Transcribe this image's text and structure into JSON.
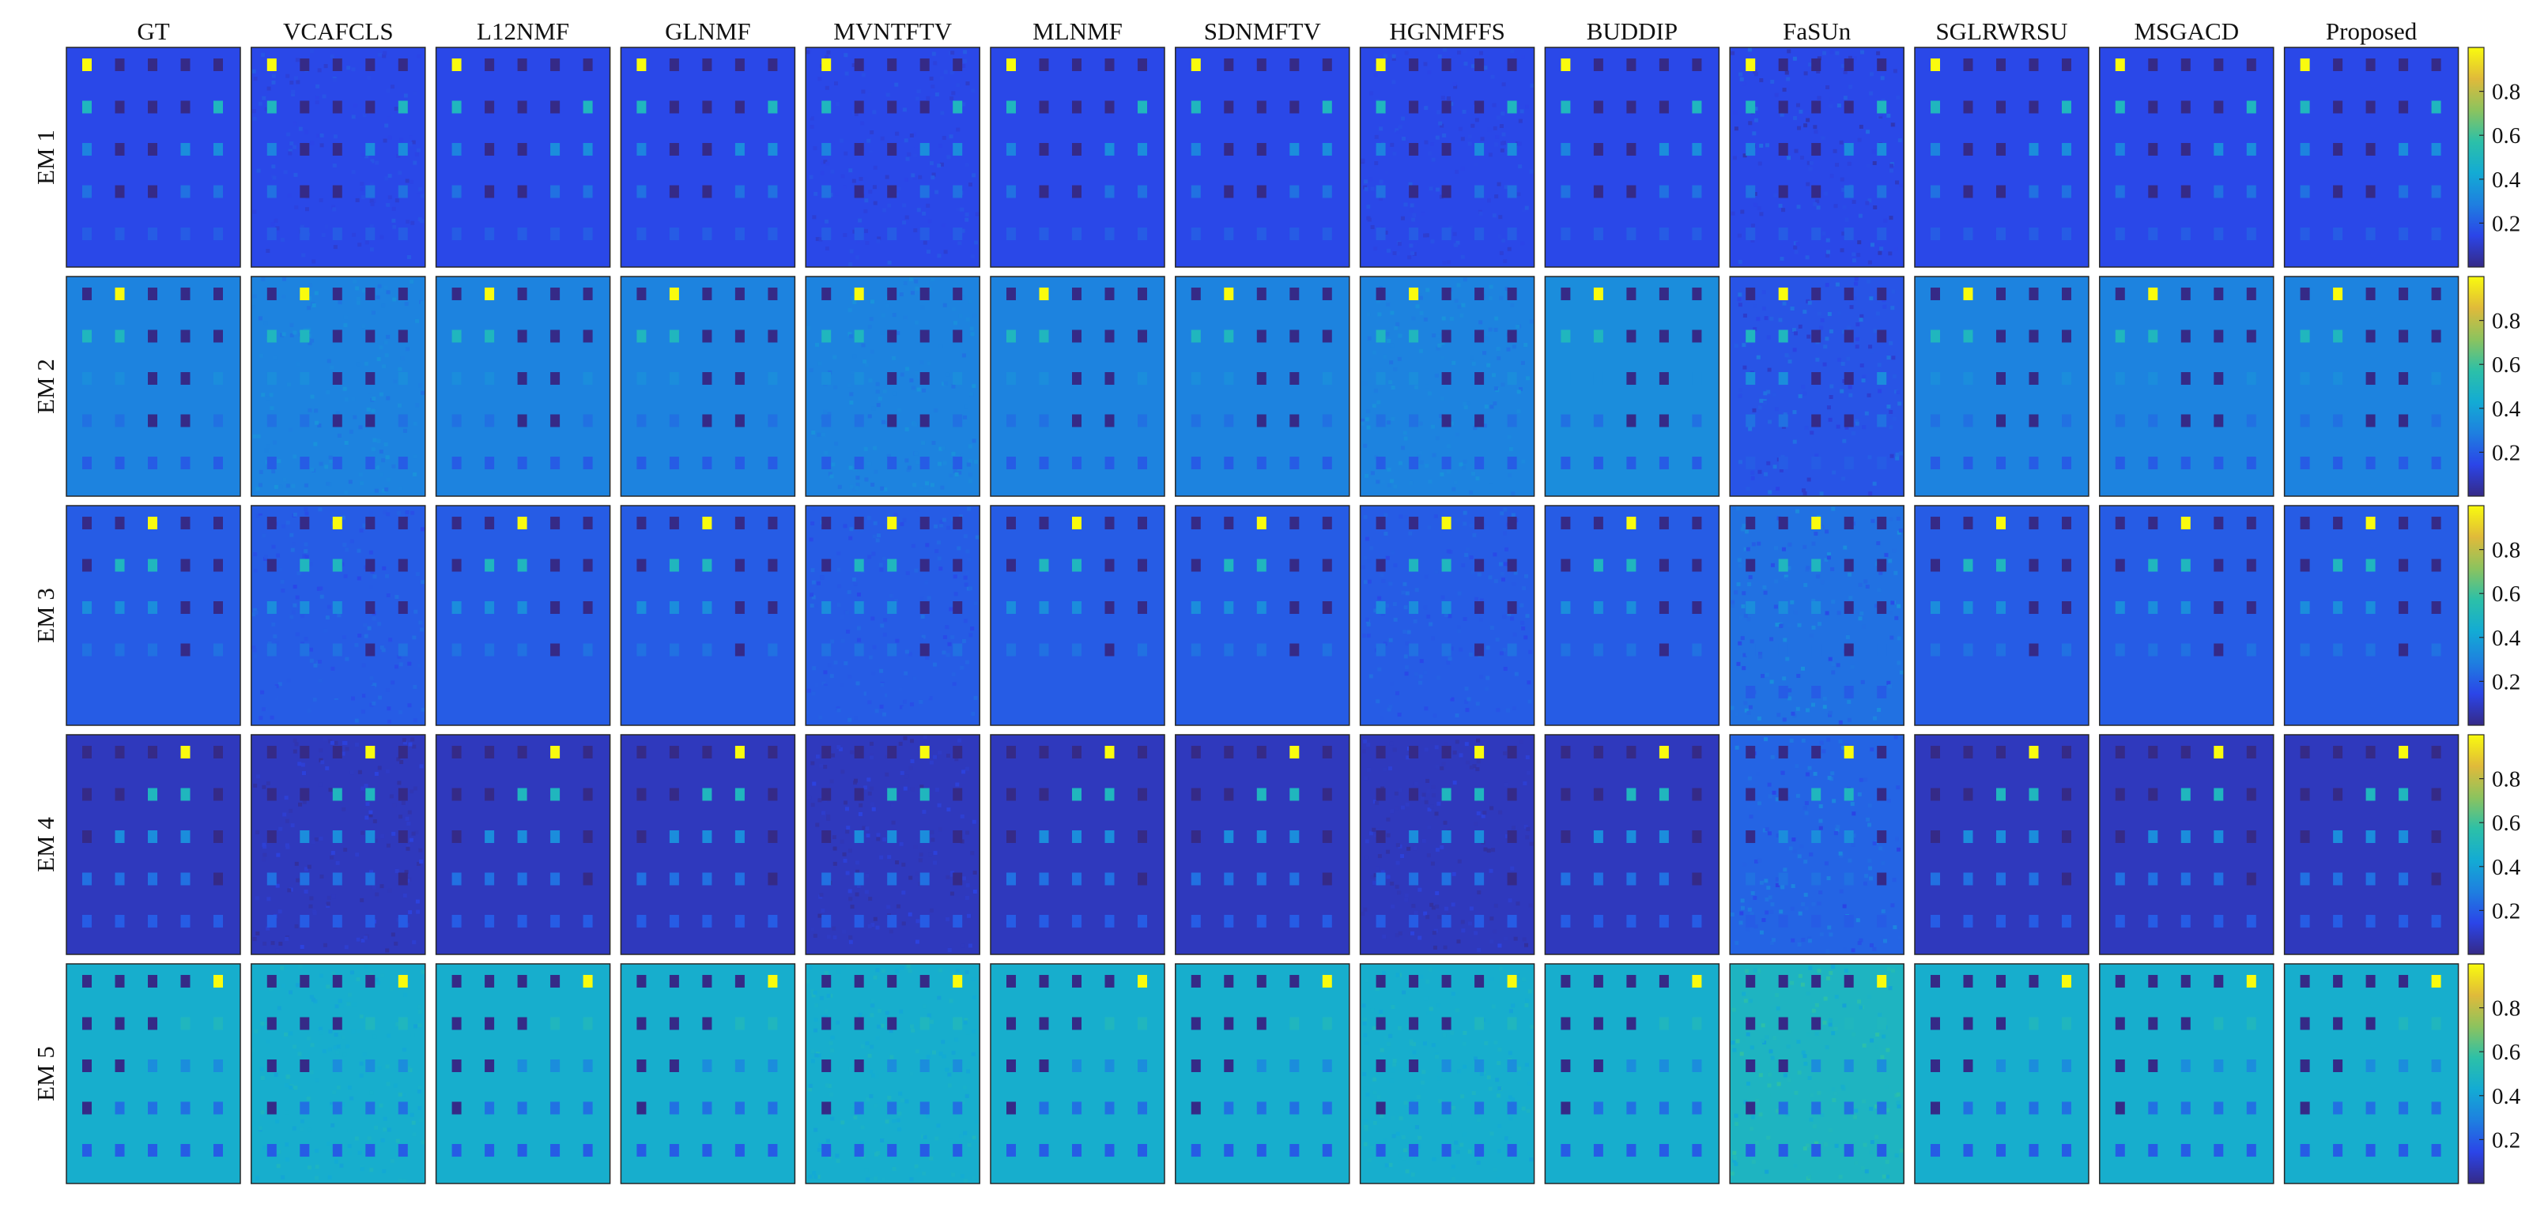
{
  "chart_data": {
    "type": "heatmap",
    "columns": [
      "GT",
      "VCAFCLS",
      "L12NMF",
      "GLNMF",
      "MVNTFTV",
      "MLNMF",
      "SDNMFTV",
      "HGNMFFS",
      "BUDDIP",
      "FaSUn",
      "SGLRWRSU",
      "MSGACD",
      "Proposed"
    ],
    "rows": [
      "EM 1",
      "EM 2",
      "EM 3",
      "EM 4",
      "EM 5"
    ],
    "colorbar_ticks": [
      "0.8",
      "0.6",
      "0.4",
      "0.2"
    ],
    "color_range": [
      0,
      1
    ],
    "colormap": "parula",
    "colormap_stops": [
      "#352a87",
      "#2b45e8",
      "#1e7fe0",
      "#13abd4",
      "#2cc0a8",
      "#8cc35e",
      "#e0ba3a",
      "#f9fb0e"
    ],
    "square_grid": [
      5,
      5
    ],
    "background_abundance": [
      0.15,
      0.3,
      0.2,
      0.08,
      0.45
    ],
    "square_abundance": [
      [
        [
          1.0,
          0.0,
          0.0,
          0.0,
          0.0
        ],
        [
          0.5,
          0.0,
          0.0,
          0.0,
          0.5
        ],
        [
          0.3,
          0.0,
          0.0,
          0.33,
          0.33
        ],
        [
          0.25,
          0.0,
          0.0,
          0.25,
          0.25
        ],
        [
          0.2,
          0.2,
          0.2,
          0.2,
          0.2
        ]
      ],
      [
        [
          0.0,
          1.0,
          0.0,
          0.0,
          0.0
        ],
        [
          0.5,
          0.5,
          0.0,
          0.0,
          0.0
        ],
        [
          0.33,
          0.33,
          0.0,
          0.0,
          0.33
        ],
        [
          0.25,
          0.25,
          0.0,
          0.0,
          0.25
        ],
        [
          0.2,
          0.2,
          0.2,
          0.2,
          0.2
        ]
      ],
      [
        [
          0.0,
          0.0,
          1.0,
          0.0,
          0.0
        ],
        [
          0.0,
          0.5,
          0.5,
          0.0,
          0.0
        ],
        [
          0.33,
          0.33,
          0.33,
          0.0,
          0.0
        ],
        [
          0.25,
          0.25,
          0.25,
          0.0,
          0.25
        ],
        [
          0.2,
          0.2,
          0.2,
          0.2,
          0.2
        ]
      ],
      [
        [
          0.0,
          0.0,
          0.0,
          1.0,
          0.0
        ],
        [
          0.0,
          0.0,
          0.5,
          0.5,
          0.0
        ],
        [
          0.0,
          0.33,
          0.33,
          0.33,
          0.0
        ],
        [
          0.25,
          0.25,
          0.25,
          0.25,
          0.0
        ],
        [
          0.2,
          0.2,
          0.2,
          0.2,
          0.2
        ]
      ],
      [
        [
          0.0,
          0.0,
          0.0,
          0.0,
          1.0
        ],
        [
          0.0,
          0.0,
          0.0,
          0.5,
          0.5
        ],
        [
          0.0,
          0.0,
          0.33,
          0.33,
          0.33
        ],
        [
          0.0,
          0.25,
          0.25,
          0.25,
          0.25
        ],
        [
          0.2,
          0.2,
          0.2,
          0.2,
          0.2
        ]
      ]
    ],
    "method_background_shift": {
      "FaSUn": [
        0.0,
        -0.12,
        0.05,
        0.14,
        0.04
      ],
      "BUDDIP": [
        0.0,
        0.03,
        0.0,
        0.0,
        0.0
      ]
    },
    "noisy_methods": [
      "VCAFCLS",
      "MVNTFTV",
      "HGNMFFS",
      "FaSUn"
    ],
    "grid": false
  }
}
